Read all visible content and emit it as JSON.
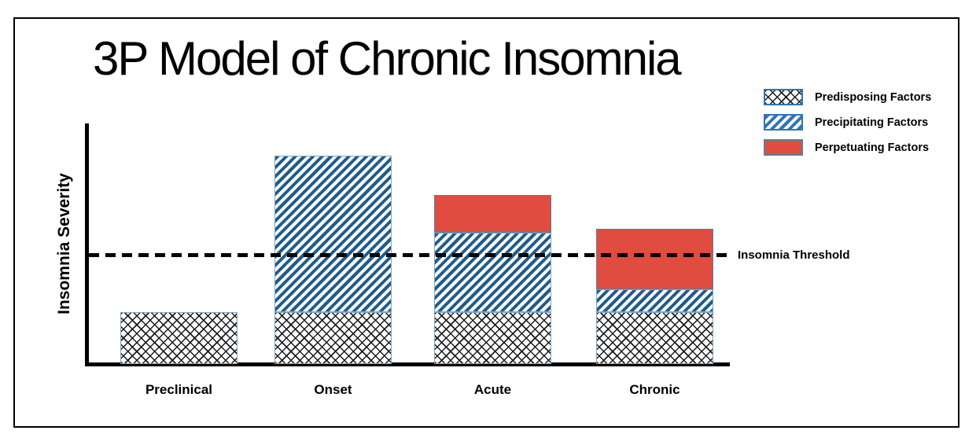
{
  "title": "3P Model of Chronic Insomnia",
  "chart_data": {
    "type": "stacked-bar",
    "title": "3P Model of Chronic Insomnia",
    "xlabel": "",
    "ylabel": "Insomnia Severity",
    "categories": [
      "Preclinical",
      "Onset",
      "Acute",
      "Chronic"
    ],
    "series": [
      {
        "name": "Predisposing Factors",
        "pattern": "crosshatch",
        "values": [
          25,
          25,
          25,
          25
        ]
      },
      {
        "name": "Precipitating Factors",
        "pattern": "diagonal-stripes",
        "values": [
          0,
          75,
          38,
          11
        ]
      },
      {
        "name": "Perpetuating Factors",
        "pattern": "solid",
        "values": [
          0,
          0,
          18,
          29
        ]
      }
    ],
    "threshold": {
      "label": "Insomnia Threshold",
      "value": 52
    },
    "ylim": [
      0,
      115
    ],
    "y_ticks_shown": false,
    "grid": false,
    "legend_position": "top-right",
    "colors": {
      "crosshatch_line": "#1a1a1a",
      "bar_stripe_blue": "#1f5c8b",
      "legend_stripe_blue": "#2e75b6",
      "perpetuating_red": "#e04c3f",
      "segment_border": "#7fa5c4",
      "red_segment_border": "#5b7f9e",
      "axis": "#000000",
      "background": "#ffffff"
    }
  }
}
